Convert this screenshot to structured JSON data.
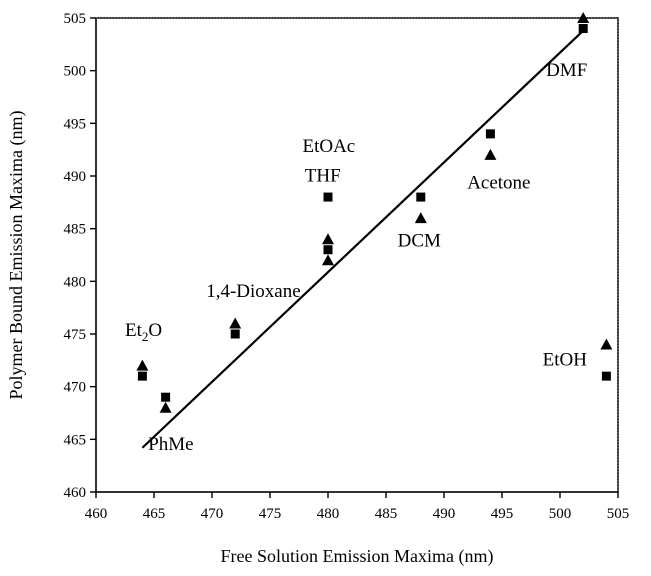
{
  "chart_data": {
    "type": "scatter",
    "xlabel": "Free Solution Emission Maxima (nm)",
    "ylabel": "Polymer Bound Emission Maxima (nm)",
    "xlim": [
      460,
      505
    ],
    "ylim": [
      460,
      505
    ],
    "x_ticks": [
      460,
      465,
      470,
      475,
      480,
      485,
      490,
      495,
      500,
      505
    ],
    "y_ticks": [
      460,
      465,
      470,
      475,
      480,
      485,
      490,
      495,
      500,
      505
    ],
    "grid": false,
    "series": [
      {
        "marker": "square",
        "points": [
          {
            "x": 464,
            "y": 471
          },
          {
            "x": 466,
            "y": 469
          },
          {
            "x": 472,
            "y": 475
          },
          {
            "x": 480,
            "y": 483
          },
          {
            "x": 480,
            "y": 488
          },
          {
            "x": 488,
            "y": 488
          },
          {
            "x": 494,
            "y": 494
          },
          {
            "x": 502,
            "y": 504
          },
          {
            "x": 504,
            "y": 471
          }
        ]
      },
      {
        "marker": "triangle",
        "points": [
          {
            "x": 464,
            "y": 472
          },
          {
            "x": 466,
            "y": 468
          },
          {
            "x": 472,
            "y": 476
          },
          {
            "x": 480,
            "y": 482
          },
          {
            "x": 480,
            "y": 484
          },
          {
            "x": 488,
            "y": 486
          },
          {
            "x": 494,
            "y": 492
          },
          {
            "x": 502,
            "y": 505
          },
          {
            "x": 504,
            "y": 474
          }
        ]
      }
    ],
    "fit_line": {
      "x1": 464,
      "y1": 464.2,
      "x2": 502,
      "y2": 503.8
    },
    "annotations": [
      {
        "text": "Et",
        "sub": "2",
        "tail": "O",
        "x": 462.5,
        "y": 474.8
      },
      {
        "text": "PhMe",
        "x": 464.5,
        "y": 464.0
      },
      {
        "text": "1,4-Dioxane",
        "x": 469.5,
        "y": 478.5
      },
      {
        "text": "EtOAc",
        "x": 477.8,
        "y": 492.3
      },
      {
        "text": "THF",
        "x": 478.0,
        "y": 489.5
      },
      {
        "text": "DCM",
        "x": 486.0,
        "y": 483.3
      },
      {
        "text": "Acetone",
        "x": 492.0,
        "y": 488.8
      },
      {
        "text": "DMF",
        "x": 498.8,
        "y": 499.5
      },
      {
        "text": "EtOH",
        "x": 498.5,
        "y": 472.0
      }
    ]
  }
}
